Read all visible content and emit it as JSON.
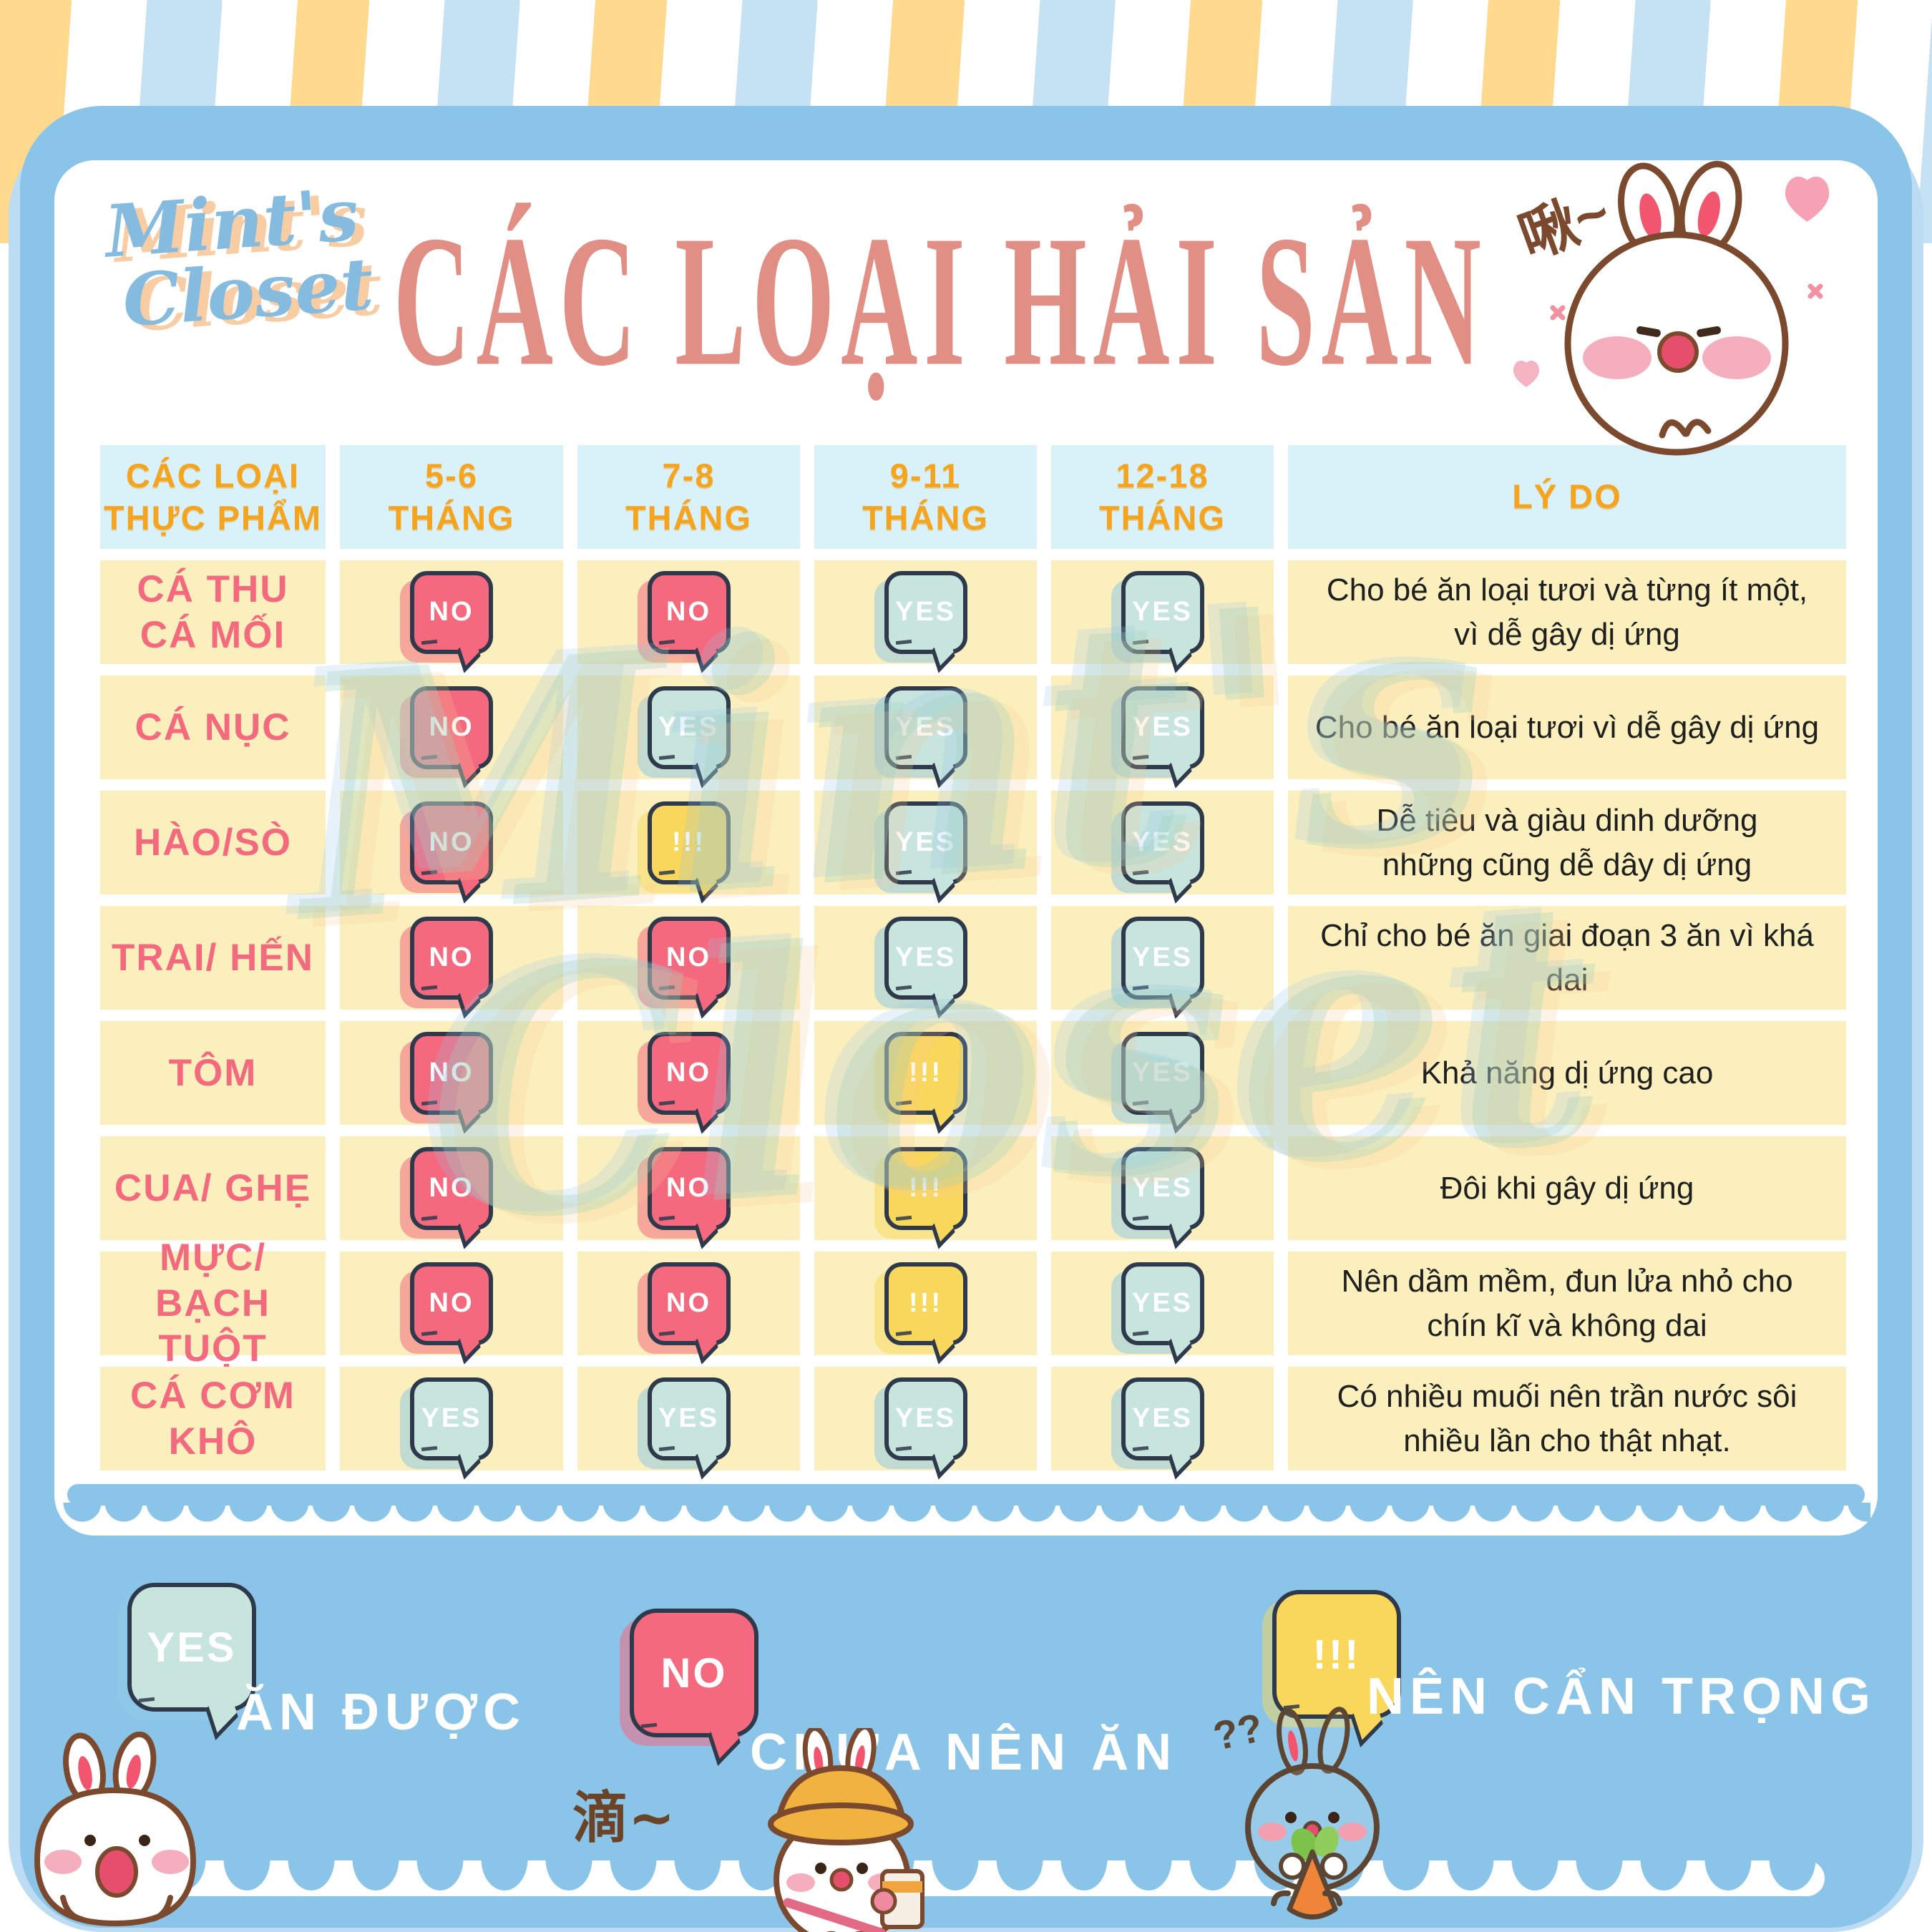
{
  "brand": {
    "logo_line1": "Mint's",
    "logo_line2": "Closet"
  },
  "header": {
    "title": "CÁC LOẠI HẢI SẢN"
  },
  "watermark": {
    "line1": "Mint's",
    "line2": "Closet"
  },
  "decorations": {
    "bunny_top_text": "啾~",
    "bunny_hat_text": "滴~",
    "bunny_carrot_text": "??"
  },
  "badges": {
    "yes": "YES",
    "no": "NO",
    "warn": "!!!"
  },
  "table": {
    "columns": [
      {
        "line1": "CÁC LOẠI",
        "line2": "THỰC PHẨM"
      },
      {
        "line1": "5-6",
        "line2": "THÁNG"
      },
      {
        "line1": "7-8",
        "line2": "THÁNG"
      },
      {
        "line1": "9-11",
        "line2": "THÁNG"
      },
      {
        "line1": "12-18",
        "line2": "THÁNG"
      },
      {
        "line1": "LÝ DO",
        "line2": ""
      }
    ],
    "rows": [
      {
        "label": "CÁ THU\nCÁ MỐI",
        "badges": [
          "no",
          "no",
          "yes",
          "yes"
        ],
        "reason": "Cho bé ăn loại tươi và từng ít một,\nvì dễ gây dị ứng"
      },
      {
        "label": "CÁ NỤC",
        "badges": [
          "no",
          "yes",
          "yes",
          "yes"
        ],
        "reason": "Cho bé ăn loại tươi vì dễ gây dị ứng"
      },
      {
        "label": "HÀO/SÒ",
        "badges": [
          "no",
          "warn",
          "yes",
          "yes"
        ],
        "reason": "Dễ tiêu và giàu dinh dưỡng\nnhững cũng dễ dây dị ứng"
      },
      {
        "label": "TRAI/ HẾN",
        "badges": [
          "no",
          "no",
          "yes",
          "yes"
        ],
        "reason": "Chỉ cho bé ăn giai đoạn 3 ăn vì khá dai"
      },
      {
        "label": "TÔM",
        "badges": [
          "no",
          "no",
          "warn",
          "yes"
        ],
        "reason": "Khả năng dị ứng cao"
      },
      {
        "label": "CUA/ GHẸ",
        "badges": [
          "no",
          "no",
          "warn",
          "yes"
        ],
        "reason": "Đôi khi gây dị ứng"
      },
      {
        "label": "MỰC/\nBẠCH TUỘT",
        "badges": [
          "no",
          "no",
          "warn",
          "yes"
        ],
        "reason": "Nên dầm mềm, đun lửa nhỏ cho\nchín kĩ và không dai"
      },
      {
        "label": "CÁ CƠM KHÔ",
        "badges": [
          "yes",
          "yes",
          "yes",
          "yes"
        ],
        "reason": "Có nhiều muối nên trần nước sôi\nnhiều lần cho thật nhạt."
      }
    ]
  },
  "legend": [
    {
      "badge": "yes",
      "label": "ĂN ĐƯỢC"
    },
    {
      "badge": "no",
      "label": "CHƯA NÊN ĂN"
    },
    {
      "badge": "warn",
      "label": "NÊN CẨN TRỌNG"
    }
  ],
  "colors": {
    "card_blue": "#8AC4E8",
    "under_blue": "#BBDCF2",
    "stripe_yellow": "#FFD98E",
    "stripe_blue": "#C5E1F4",
    "header_cell": "#D9F1F8",
    "body_cell": "#FBF0BD",
    "header_text": "#F5A41F",
    "label_text": "#F3697D",
    "title_text": "#E18F85",
    "badge_no": "#F4697E",
    "badge_yes": "#C7E5DD",
    "badge_warn": "#F8D75B",
    "badge_outline": "#2E3A4C"
  }
}
